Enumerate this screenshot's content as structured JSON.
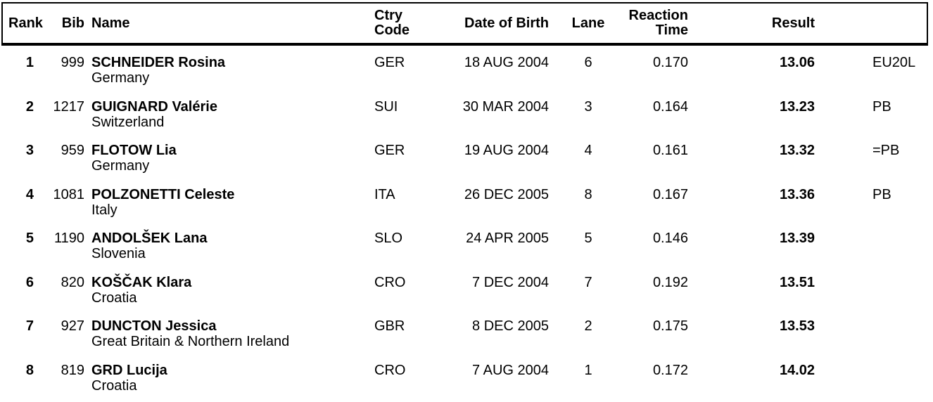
{
  "colors": {
    "text": "#000000",
    "background": "#ffffff",
    "border": "#000000"
  },
  "header": {
    "rank": "Rank",
    "bib": "Bib",
    "name": "Name",
    "ctry_code": "Ctry\nCode",
    "date_of_birth": "Date of Birth",
    "lane": "Lane",
    "reaction_time": "Reaction\nTime",
    "result": "Result"
  },
  "rows": [
    {
      "rank": "1",
      "bib": "999",
      "name": "SCHNEIDER Rosina",
      "country": "Germany",
      "ctry_code": "GER",
      "date_of_birth": "18 AUG 2004",
      "lane": "6",
      "reaction_time": "0.170",
      "result": "13.06",
      "note": "EU20L"
    },
    {
      "rank": "2",
      "bib": "1217",
      "name": "GUIGNARD Valérie",
      "country": "Switzerland",
      "ctry_code": "SUI",
      "date_of_birth": "30 MAR 2004",
      "lane": "3",
      "reaction_time": "0.164",
      "result": "13.23",
      "note": "PB"
    },
    {
      "rank": "3",
      "bib": "959",
      "name": "FLOTOW Lia",
      "country": "Germany",
      "ctry_code": "GER",
      "date_of_birth": "19 AUG 2004",
      "lane": "4",
      "reaction_time": "0.161",
      "result": "13.32",
      "note": "=PB"
    },
    {
      "rank": "4",
      "bib": "1081",
      "name": "POLZONETTI Celeste",
      "country": "Italy",
      "ctry_code": "ITA",
      "date_of_birth": "26 DEC 2005",
      "lane": "8",
      "reaction_time": "0.167",
      "result": "13.36",
      "note": "PB"
    },
    {
      "rank": "5",
      "bib": "1190",
      "name": "ANDOLŠEK Lana",
      "country": "Slovenia",
      "ctry_code": "SLO",
      "date_of_birth": "24 APR 2005",
      "lane": "5",
      "reaction_time": "0.146",
      "result": "13.39",
      "note": ""
    },
    {
      "rank": "6",
      "bib": "820",
      "name": "KOŠČAK Klara",
      "country": "Croatia",
      "ctry_code": "CRO",
      "date_of_birth": "7 DEC 2004",
      "lane": "7",
      "reaction_time": "0.192",
      "result": "13.51",
      "note": ""
    },
    {
      "rank": "7",
      "bib": "927",
      "name": "DUNCTON Jessica",
      "country": "Great Britain & Northern Ireland",
      "ctry_code": "GBR",
      "date_of_birth": "8 DEC 2005",
      "lane": "2",
      "reaction_time": "0.175",
      "result": "13.53",
      "note": ""
    },
    {
      "rank": "8",
      "bib": "819",
      "name": "GRD Lucija",
      "country": "Croatia",
      "ctry_code": "CRO",
      "date_of_birth": "7 AUG 2004",
      "lane": "1",
      "reaction_time": "0.172",
      "result": "14.02",
      "note": ""
    }
  ]
}
